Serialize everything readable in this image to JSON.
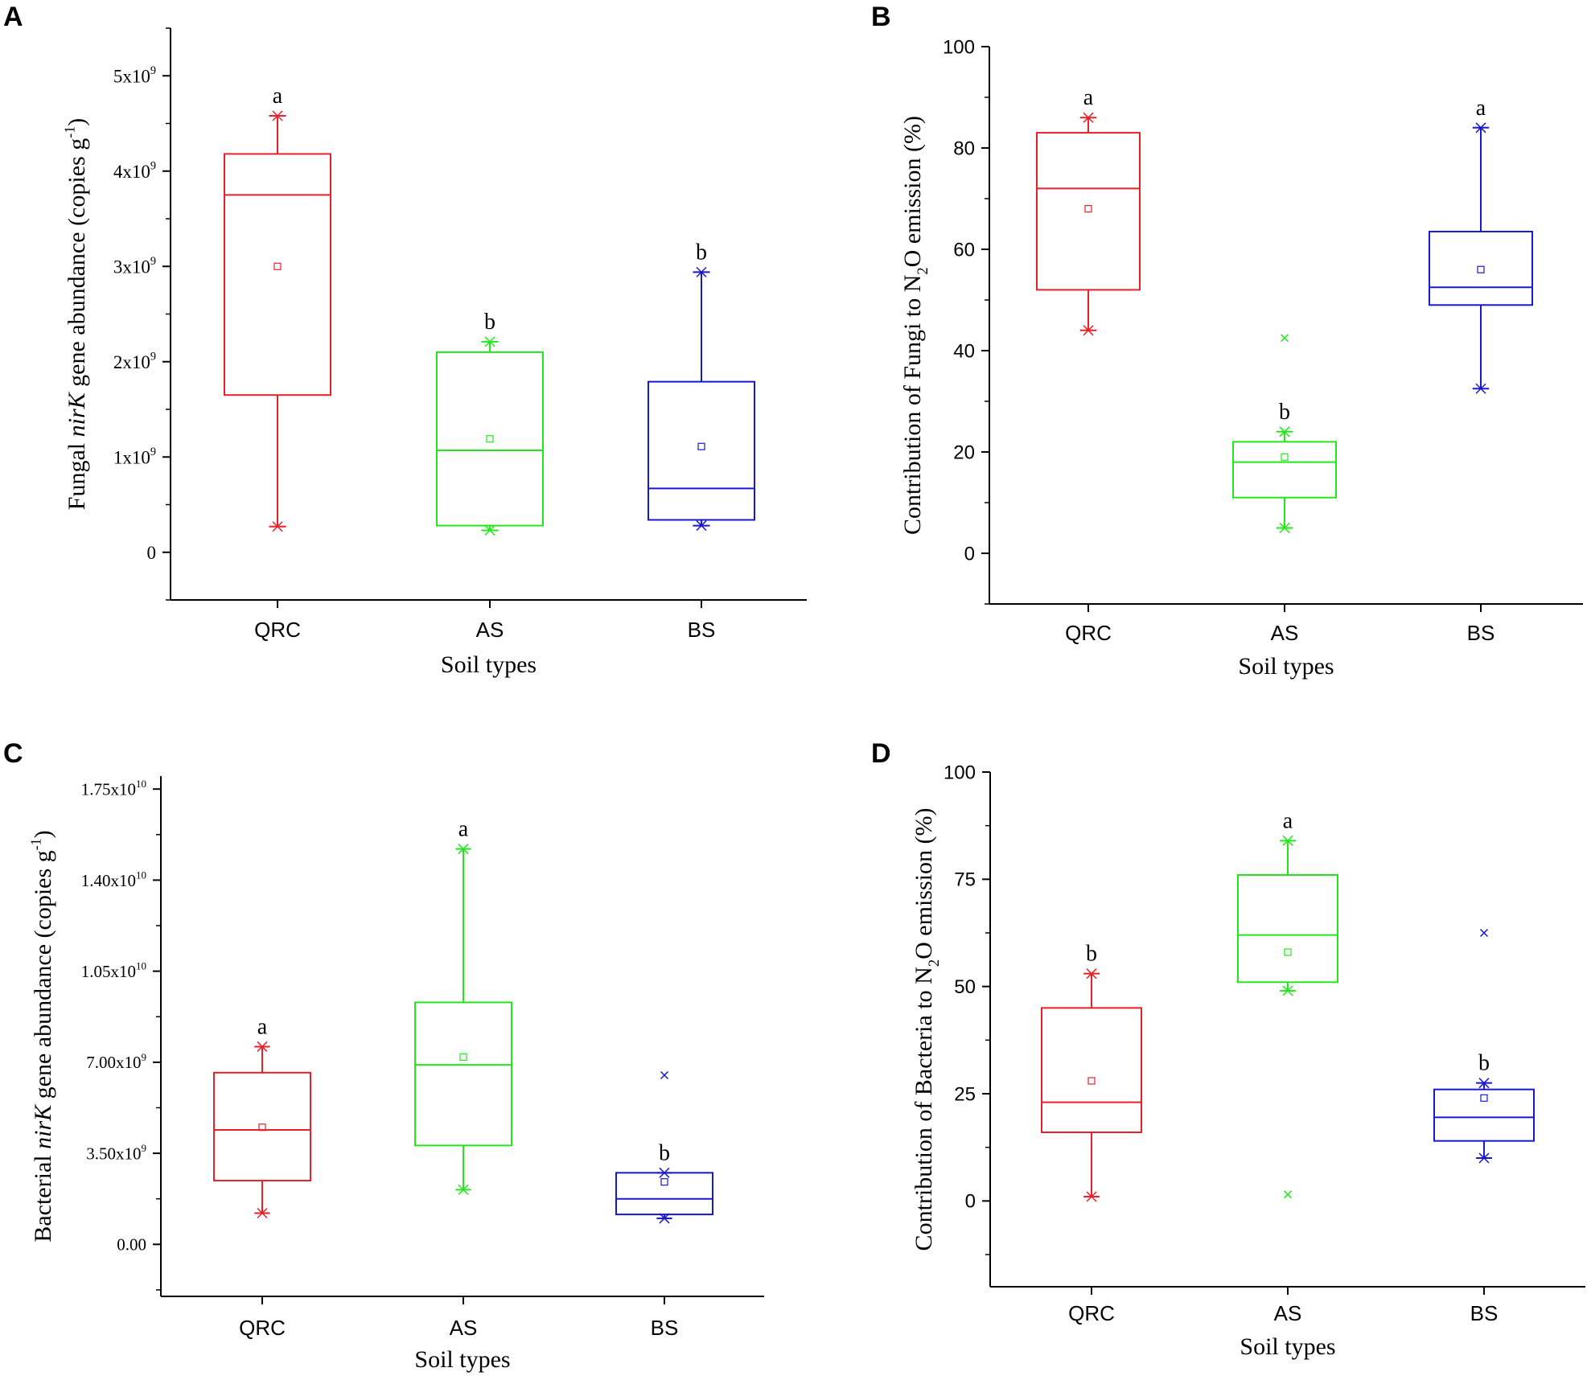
{
  "figure": {
    "panels": [
      "A",
      "B",
      "C",
      "D"
    ]
  },
  "chart_data": [
    {
      "panel": "A",
      "type": "box",
      "title": "",
      "xlabel": "Soil types",
      "ylabel_parts": [
        "Fungal ",
        "nirK",
        " gene abundance (copies g",
        "-1",
        ")"
      ],
      "categories": [
        "QRC",
        "AS",
        "BS"
      ],
      "ylim": [
        -500000000.0,
        5500000000.0
      ],
      "yticks": [
        0,
        1000000000.0,
        2000000000.0,
        3000000000.0,
        4000000000.0,
        5000000000.0
      ],
      "ytick_labels": [
        {
          "base": "0",
          "exp": ""
        },
        {
          "base": "1x10",
          "exp": "9"
        },
        {
          "base": "2x10",
          "exp": "9"
        },
        {
          "base": "3x10",
          "exp": "9"
        },
        {
          "base": "4x10",
          "exp": "9"
        },
        {
          "base": "5x10",
          "exp": "9"
        }
      ],
      "tick_font": "serif",
      "series": [
        {
          "name": "QRC",
          "color": "#e8202a",
          "min": 270000000.0,
          "q1": 1650000000.0,
          "median": 3750000000.0,
          "q3": 4180000000.0,
          "max": 4580000000.0,
          "mean": 3000000000.0,
          "outliers": [],
          "letter": "a"
        },
        {
          "name": "AS",
          "color": "#22e81a",
          "min": 230000000.0,
          "q1": 280000000.0,
          "median": 1070000000.0,
          "q3": 2100000000.0,
          "max": 2210000000.0,
          "mean": 1190000000.0,
          "outliers": [],
          "letter": "b"
        },
        {
          "name": "BS",
          "color": "#1818d0",
          "min": 280000000.0,
          "q1": 340000000.0,
          "median": 670000000.0,
          "q3": 1790000000.0,
          "max": 2940000000.0,
          "mean": 1110000000.0,
          "outliers": [],
          "letter": "b"
        }
      ]
    },
    {
      "panel": "B",
      "type": "box",
      "title": "",
      "xlabel": "Soil types",
      "ylabel_parts": [
        "Contribution of Fungi to N",
        "2",
        "O emission (%)"
      ],
      "categories": [
        "QRC",
        "AS",
        "BS"
      ],
      "ylim": [
        -10,
        100
      ],
      "yticks": [
        0,
        20,
        40,
        60,
        80,
        100
      ],
      "ytick_labels": [
        {
          "base": "0",
          "exp": ""
        },
        {
          "base": "20",
          "exp": ""
        },
        {
          "base": "40",
          "exp": ""
        },
        {
          "base": "60",
          "exp": ""
        },
        {
          "base": "80",
          "exp": ""
        },
        {
          "base": "100",
          "exp": ""
        }
      ],
      "tick_font": "sans",
      "series": [
        {
          "name": "QRC",
          "color": "#e8202a",
          "min": 44,
          "q1": 52,
          "median": 72,
          "q3": 83,
          "max": 86,
          "mean": 68,
          "outliers": [],
          "letter": "a"
        },
        {
          "name": "AS",
          "color": "#22e81a",
          "min": 5,
          "q1": 11,
          "median": 18,
          "q3": 22,
          "max": 24,
          "mean": 19,
          "outliers": [
            42.5
          ],
          "letter": "b"
        },
        {
          "name": "BS",
          "color": "#1818d0",
          "min": 32.5,
          "q1": 49,
          "median": 52.5,
          "q3": 63.5,
          "max": 84,
          "mean": 56,
          "outliers": [],
          "letter": "a"
        }
      ]
    },
    {
      "panel": "C",
      "type": "box",
      "title": "",
      "xlabel": "Soil types",
      "ylabel_parts": [
        "Bacterial ",
        "nirK",
        " gene abundance (copies g",
        "-1",
        ")"
      ],
      "categories": [
        "QRC",
        "AS",
        "BS"
      ],
      "ylim": [
        -2000000000.0,
        18000000000.0
      ],
      "yticks": [
        0,
        3500000000.0,
        7000000000.0,
        10500000000.0,
        14000000000.0,
        17500000000.0
      ],
      "ytick_labels": [
        {
          "base": "0.00",
          "exp": ""
        },
        {
          "base": "3.50x10",
          "exp": "9"
        },
        {
          "base": "7.00x10",
          "exp": "9"
        },
        {
          "base": "1.05x10",
          "exp": "10"
        },
        {
          "base": "1.40x10",
          "exp": "10"
        },
        {
          "base": "1.75x10",
          "exp": "10"
        }
      ],
      "tick_font": "serif",
      "series": [
        {
          "name": "QRC",
          "color": "#e8202a",
          "min": 1200000000.0,
          "q1": 2450000000.0,
          "median": 4400000000.0,
          "q3": 6600000000.0,
          "max": 7600000000.0,
          "mean": 4500000000.0,
          "outliers": [],
          "letter": "a"
        },
        {
          "name": "AS",
          "color": "#22e81a",
          "min": 2100000000.0,
          "q1": 3800000000.0,
          "median": 6900000000.0,
          "q3": 9300000000.0,
          "max": 15200000000.0,
          "mean": 7200000000.0,
          "outliers": [],
          "letter": "a"
        },
        {
          "name": "BS",
          "color": "#1818d0",
          "min": 1000000000.0,
          "q1": 1150000000.0,
          "median": 1750000000.0,
          "q3": 2750000000.0,
          "max": 2750000000.0,
          "mean": 2400000000.0,
          "outliers": [
            6500000000.0
          ],
          "letter": "b"
        }
      ]
    },
    {
      "panel": "D",
      "type": "box",
      "title": "",
      "xlabel": "Soil types",
      "ylabel_parts": [
        "Contribution of Bacteria to N",
        "2",
        "O emission (%)"
      ],
      "categories": [
        "QRC",
        "AS",
        "BS"
      ],
      "ylim": [
        -20,
        100
      ],
      "yticks": [
        0,
        25,
        50,
        75,
        100
      ],
      "ytick_labels": [
        {
          "base": "0",
          "exp": ""
        },
        {
          "base": "25",
          "exp": ""
        },
        {
          "base": "50",
          "exp": ""
        },
        {
          "base": "75",
          "exp": ""
        },
        {
          "base": "100",
          "exp": ""
        }
      ],
      "tick_font": "sans",
      "series": [
        {
          "name": "QRC",
          "color": "#e8202a",
          "min": 1,
          "q1": 16,
          "median": 23,
          "q3": 45,
          "max": 53,
          "mean": 28,
          "outliers": [],
          "letter": "b"
        },
        {
          "name": "AS",
          "color": "#22e81a",
          "min": 49,
          "q1": 51,
          "median": 62,
          "q3": 76,
          "max": 84,
          "mean": 58,
          "outliers": [
            1.5
          ],
          "letter": "a"
        },
        {
          "name": "BS",
          "color": "#1818d0",
          "min": 10,
          "q1": 14,
          "median": 19.5,
          "q3": 26,
          "max": 27.5,
          "mean": 24,
          "outliers": [
            62.5
          ],
          "letter": "b"
        }
      ]
    }
  ]
}
